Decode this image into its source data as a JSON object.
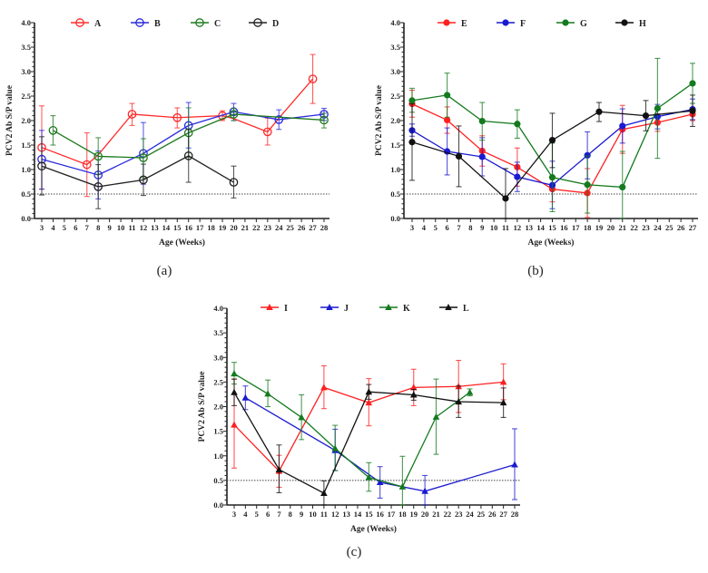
{
  "chart_data": [
    {
      "type": "line",
      "panel_label": "(a)",
      "xlabel": "Age (Weeks)",
      "ylabel": "PCV2 Ab S/P value",
      "ylim": [
        0,
        4.0
      ],
      "yticks": [
        "0.0",
        "0.5",
        "1.0",
        "1.5",
        "2.0",
        "2.5",
        "3.0",
        "3.5",
        "4.0"
      ],
      "xticks": [
        3,
        4,
        5,
        6,
        7,
        8,
        9,
        10,
        11,
        12,
        13,
        14,
        15,
        16,
        17,
        18,
        19,
        20,
        21,
        22,
        23,
        24,
        25,
        26,
        27,
        28
      ],
      "cutoff": 0.5,
      "marker": "open-circle",
      "legend_position": "top",
      "series": [
        {
          "name": "A",
          "color": "#ff2a2a",
          "points": [
            [
              3,
              1.45,
              0.6,
              2.3
            ],
            [
              7,
              1.1,
              0.45,
              1.75
            ],
            [
              8,
              1.3,
              1.3,
              1.3
            ],
            [
              11,
              2.13,
              1.9,
              2.35
            ],
            [
              15,
              2.06,
              1.85,
              2.26
            ],
            [
              19,
              2.1,
              2.0,
              2.2
            ],
            [
              20,
              2.04,
              2.04,
              2.04
            ],
            [
              23,
              1.77,
              1.5,
              2.05
            ],
            [
              24,
              2.05,
              2.05,
              2.05
            ],
            [
              27,
              2.85,
              2.35,
              3.35
            ]
          ]
        },
        {
          "name": "B",
          "color": "#2a2add",
          "points": [
            [
              3,
              1.21,
              0.6,
              1.8
            ],
            [
              8,
              0.89,
              0.4,
              1.38
            ],
            [
              12,
              1.33,
              0.7,
              1.96
            ],
            [
              16,
              1.9,
              1.44,
              2.37
            ],
            [
              20,
              2.18,
              2.0,
              2.35
            ],
            [
              24,
              2.02,
              1.82,
              2.22
            ],
            [
              28,
              2.13,
              2.0,
              2.25
            ]
          ]
        },
        {
          "name": "C",
          "color": "#1e7a1e",
          "points": [
            [
              4,
              1.8,
              1.5,
              2.1
            ],
            [
              8,
              1.27,
              0.9,
              1.65
            ],
            [
              12,
              1.24,
              0.83,
              1.63
            ],
            [
              16,
              1.75,
              1.25,
              2.26
            ],
            [
              20,
              2.13,
              2.0,
              2.25
            ],
            [
              28,
              2.01,
              1.85,
              2.15
            ]
          ]
        },
        {
          "name": "D",
          "color": "#222222",
          "points": [
            [
              3,
              1.07,
              0.48,
              1.67
            ],
            [
              8,
              0.65,
              0.2,
              1.1
            ],
            [
              12,
              0.79,
              0.47,
              1.11
            ],
            [
              16,
              1.28,
              0.74,
              1.82
            ],
            [
              20,
              0.74,
              0.42,
              1.07
            ]
          ]
        }
      ]
    },
    {
      "type": "line",
      "panel_label": "(b)",
      "xlabel": "Age (Weeks)",
      "ylabel": "PCV2 Ab S/P value",
      "ylim": [
        0,
        4.0
      ],
      "yticks": [
        "0.0",
        "0.5",
        "1.0",
        "1.5",
        "2.0",
        "2.5",
        "3.0",
        "3.5",
        "4.0"
      ],
      "xticks": [
        3,
        4,
        5,
        6,
        7,
        8,
        9,
        10,
        11,
        12,
        13,
        14,
        15,
        16,
        17,
        18,
        19,
        20,
        21,
        22,
        23,
        24,
        25,
        26,
        27
      ],
      "cutoff": 0.5,
      "marker": "filled-circle",
      "legend_position": "top",
      "series": [
        {
          "name": "E",
          "color": "#ff2020",
          "points": [
            [
              3,
              2.34,
              2.07,
              2.62
            ],
            [
              6,
              2.01,
              1.74,
              2.28
            ],
            [
              9,
              1.38,
              1.07,
              1.69
            ],
            [
              12,
              1.05,
              0.66,
              1.44
            ],
            [
              15,
              0.6,
              0.34,
              0.86
            ],
            [
              18,
              0.52,
              0.02,
              1.02
            ],
            [
              21,
              1.82,
              1.33,
              2.31
            ],
            [
              24,
              1.96,
              1.78,
              2.14
            ],
            [
              27,
              2.13,
              2.0,
              2.26
            ]
          ]
        },
        {
          "name": "F",
          "color": "#1a1ad0",
          "points": [
            [
              3,
              1.8,
              1.68,
              1.93
            ],
            [
              6,
              1.37,
              0.89,
              1.85
            ],
            [
              9,
              1.26,
              0.87,
              1.65
            ],
            [
              12,
              0.85,
              0.55,
              1.15
            ],
            [
              15,
              0.68,
              0.2,
              1.17
            ],
            [
              18,
              1.29,
              0.81,
              1.77
            ],
            [
              21,
              1.89,
              1.54,
              2.24
            ],
            [
              24,
              2.08,
              1.83,
              2.33
            ],
            [
              27,
              2.23,
              2.02,
              2.44
            ]
          ]
        },
        {
          "name": "G",
          "color": "#137a1e",
          "points": [
            [
              3,
              2.41,
              2.17,
              2.66
            ],
            [
              6,
              2.52,
              2.07,
              2.97
            ],
            [
              9,
              1.99,
              1.6,
              2.37
            ],
            [
              12,
              1.93,
              1.64,
              2.22
            ],
            [
              15,
              0.84,
              0.14,
              1.54
            ],
            [
              18,
              0.69,
              0.11,
              1.28
            ],
            [
              21,
              0.64,
              0.0,
              1.37
            ],
            [
              24,
              2.25,
              1.23,
              3.27
            ],
            [
              27,
              2.76,
              2.35,
              3.17
            ]
          ]
        },
        {
          "name": "H",
          "color": "#111111",
          "points": [
            [
              3,
              1.56,
              0.78,
              2.34
            ],
            [
              7,
              1.27,
              0.65,
              1.89
            ],
            [
              11,
              0.41,
              0.0,
              1.02
            ],
            [
              15,
              1.6,
              1.04,
              2.15
            ],
            [
              19,
              2.18,
              1.98,
              2.37
            ],
            [
              23,
              2.1,
              1.79,
              2.41
            ],
            [
              27,
              2.2,
              1.88,
              2.52
            ]
          ]
        }
      ]
    },
    {
      "type": "line",
      "panel_label": "(c)",
      "xlabel": "Age (Weeks)",
      "ylabel": "PCV2 Ab S/P value",
      "ylim": [
        0,
        4.0
      ],
      "yticks": [
        "0.0",
        "0.5",
        "1.0",
        "1.5",
        "2.0",
        "2.5",
        "3.0",
        "3.5",
        "4.0"
      ],
      "xticks": [
        3,
        4,
        5,
        6,
        7,
        8,
        9,
        10,
        11,
        12,
        13,
        14,
        15,
        16,
        17,
        18,
        19,
        20,
        21,
        22,
        23,
        24,
        25,
        26,
        27,
        28
      ],
      "cutoff": 0.5,
      "marker": "triangle",
      "legend_position": "top",
      "series": [
        {
          "name": "I",
          "color": "#ff2020",
          "points": [
            [
              3,
              1.63,
              0.75,
              2.56
            ],
            [
              7,
              0.69,
              0.36,
              1.01
            ],
            [
              11,
              2.39,
              1.96,
              2.83
            ],
            [
              15,
              2.08,
              1.61,
              2.57
            ],
            [
              19,
              2.39,
              2.02,
              2.76
            ],
            [
              23,
              2.41,
              1.88,
              2.94
            ],
            [
              27,
              2.5,
              2.14,
              2.87
            ]
          ]
        },
        {
          "name": "J",
          "color": "#1a1ad0",
          "points": [
            [
              4,
              2.18,
              1.94,
              2.42
            ],
            [
              12,
              1.11,
              0.7,
              1.54
            ],
            [
              16,
              0.46,
              0.14,
              0.78
            ],
            [
              20,
              0.28,
              0.0,
              0.6
            ],
            [
              28,
              0.82,
              0.11,
              1.55
            ]
          ]
        },
        {
          "name": "K",
          "color": "#137a1e",
          "points": [
            [
              3,
              2.67,
              2.46,
              2.9
            ],
            [
              6,
              2.26,
              2.0,
              2.54
            ],
            [
              9,
              1.78,
              1.33,
              2.24
            ],
            [
              12,
              1.15,
              0.7,
              1.62
            ],
            [
              15,
              0.56,
              0.28,
              0.86
            ],
            [
              18,
              0.37,
              0.0,
              0.99
            ],
            [
              21,
              1.79,
              1.03,
              2.56
            ],
            [
              24,
              2.29,
              2.22,
              2.36
            ]
          ]
        },
        {
          "name": "L",
          "color": "#111111",
          "points": [
            [
              3,
              2.29,
              2.02,
              2.56
            ],
            [
              7,
              0.72,
              0.25,
              1.22
            ],
            [
              11,
              0.24,
              0.0,
              0.49
            ],
            [
              15,
              2.3,
              2.15,
              2.45
            ],
            [
              19,
              2.24,
              2.13,
              2.35
            ],
            [
              23,
              2.1,
              1.78,
              2.42
            ],
            [
              27,
              2.08,
              1.78,
              2.38
            ]
          ]
        }
      ]
    }
  ]
}
